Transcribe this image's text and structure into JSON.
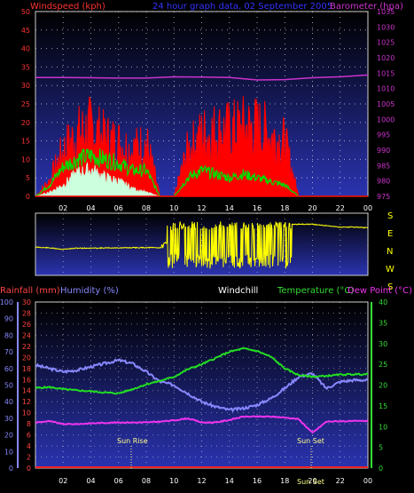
{
  "header": {
    "left_title": "Windspeed (kph)",
    "center_title": "24 hour graph data, 02 September 2005",
    "right_title": "Barometer (hpa)"
  },
  "wind_direction_labels": [
    "S",
    "E",
    "N",
    "W",
    "S"
  ],
  "bottom_header": {
    "rainfall": "Rainfall (mm)",
    "humidity": "Humidity (%)",
    "windchill": "Windchill",
    "temperature": "Temperature (°C)",
    "dewpoint": "Dew Point (°C)"
  },
  "sun_labels": {
    "sunrise": "Sun Rise",
    "sunset": "Sun Set",
    "bottom_sunset": "Sun Set"
  },
  "colors": {
    "windspeed": "#ff0000",
    "gust": "#00dd00",
    "average": "#ccffdd",
    "barometer": "#cc33cc",
    "direction": "#ffff00",
    "humidity": "#8888ff",
    "temperature": "#22dd22",
    "dewpoint": "#ee33ee",
    "rainfall": "#ff2222",
    "title_wind": "#ff3333",
    "title_center": "#3333ff",
    "title_baro": "#cc33cc",
    "axis_right_bottom": "#33dd33",
    "axis_left_rain": "#ff4444",
    "axis_left_hum": "#8888ff"
  },
  "chart_data": [
    {
      "type": "line",
      "title": "24 hour graph data, 02 September 2005",
      "x_ticks": [
        "02",
        "04",
        "06",
        "08",
        "10",
        "12",
        "14",
        "16",
        "18",
        "20",
        "22",
        "00"
      ],
      "y_left_ticks": [
        "0",
        "5",
        "10",
        "15",
        "20",
        "25",
        "30",
        "35",
        "40",
        "45",
        "50"
      ],
      "y_right_ticks": [
        "975",
        "980",
        "985",
        "990",
        "995",
        "1000",
        "1005",
        "1010",
        "1015",
        "1020",
        "1025",
        "1030",
        "1035"
      ],
      "ylim_left": [
        0,
        50
      ],
      "ylim_right": [
        975,
        1035
      ],
      "series": [
        {
          "name": "Windspeed (kph)",
          "x": [
            0,
            1,
            2,
            3,
            4,
            5,
            6,
            7,
            8,
            9,
            10,
            11,
            12,
            13,
            14,
            15,
            16,
            17,
            18,
            19,
            20,
            21,
            22,
            23,
            24
          ],
          "values": [
            0,
            4,
            12,
            16,
            18,
            15,
            14,
            12,
            14,
            0,
            0,
            12,
            16,
            17,
            17,
            18,
            18,
            16,
            14,
            0,
            0,
            0,
            0,
            0,
            0
          ]
        },
        {
          "name": "Gust",
          "x": [
            0,
            1,
            2,
            3,
            4,
            5,
            6,
            7,
            8,
            9,
            10,
            11,
            12,
            13,
            14,
            15,
            16,
            17,
            18,
            19,
            20,
            21,
            22,
            23,
            24
          ],
          "values": [
            0,
            3,
            8,
            10,
            11,
            10,
            9,
            7,
            7,
            0,
            0,
            5,
            7,
            6,
            5,
            6,
            5,
            4,
            3,
            0,
            0,
            0,
            0,
            0,
            0
          ]
        },
        {
          "name": "Average",
          "x": [
            0,
            1,
            2,
            3,
            4,
            5,
            6,
            7,
            8,
            9,
            10,
            11,
            12,
            13,
            14,
            15,
            16,
            17,
            18,
            19,
            20,
            21,
            22,
            23,
            24
          ],
          "values": [
            0,
            1,
            3,
            6,
            7,
            5,
            4,
            2,
            1,
            0,
            0,
            0,
            0,
            0,
            0,
            0,
            0,
            0,
            0,
            0,
            0,
            0,
            0,
            0,
            0
          ]
        },
        {
          "name": "Barometer (hpa)",
          "x": [
            0,
            2,
            4,
            6,
            8,
            10,
            12,
            14,
            16,
            18,
            20,
            22,
            24
          ],
          "values": [
            1013.6,
            1013.6,
            1013.5,
            1013.4,
            1013.4,
            1013.8,
            1013.7,
            1013.6,
            1012.8,
            1012.9,
            1013.5,
            1013.8,
            1014.4
          ]
        }
      ]
    },
    {
      "type": "line",
      "x_ticks": [
        "02",
        "04",
        "06",
        "08",
        "10",
        "12",
        "14",
        "16",
        "18",
        "20",
        "22",
        "00"
      ],
      "direction_labels": [
        "S",
        "E",
        "N",
        "W",
        "S"
      ],
      "series": [
        {
          "name": "Wind direction",
          "x": [
            0,
            1,
            2,
            3,
            4,
            5,
            6,
            7,
            8,
            9,
            10,
            11,
            12,
            13,
            14,
            15,
            16,
            17,
            18,
            19,
            20,
            21,
            22,
            23,
            24
          ],
          "values": [
            200,
            205,
            215,
            207,
            207,
            206,
            205,
            204,
            203,
            204,
            140,
            120,
            110,
            110,
            140,
            100,
            100,
            90,
            40,
            40,
            40,
            50,
            60,
            60,
            65
          ]
        }
      ]
    },
    {
      "type": "line",
      "x_ticks": [
        "02",
        "04",
        "06",
        "08",
        "10",
        "12",
        "14",
        "16",
        "18",
        "20",
        "22",
        "00"
      ],
      "y_left_hum_ticks": [
        "0",
        "10",
        "20",
        "30",
        "40",
        "50",
        "60",
        "70",
        "80",
        "90",
        "100"
      ],
      "y_left_rain_ticks": [
        "0",
        "2",
        "4",
        "6",
        "8",
        "10",
        "12",
        "14",
        "16",
        "18",
        "20",
        "22",
        "24",
        "26",
        "28",
        "30"
      ],
      "y_right_ticks": [
        "0",
        "5",
        "10",
        "15",
        "20",
        "25",
        "30",
        "35",
        "40"
      ],
      "ylim_temp": [
        0,
        40
      ],
      "ylim_humidity": [
        0,
        100
      ],
      "ylim_rain": [
        0,
        30
      ],
      "series": [
        {
          "name": "Humidity (%)",
          "x": [
            0,
            1,
            2,
            3,
            4,
            5,
            6,
            7,
            8,
            9,
            10,
            11,
            12,
            13,
            14,
            15,
            16,
            17,
            18,
            19,
            20,
            21,
            22,
            23,
            24
          ],
          "values": [
            62,
            60,
            58,
            59,
            61,
            63,
            65,
            63,
            58,
            52,
            50,
            45,
            40,
            37,
            35,
            36,
            38,
            42,
            48,
            55,
            57,
            48,
            52,
            53,
            53
          ]
        },
        {
          "name": "Temperature (°C)",
          "x": [
            0,
            1,
            2,
            3,
            4,
            5,
            6,
            7,
            8,
            9,
            10,
            11,
            12,
            13,
            14,
            15,
            16,
            17,
            18,
            19,
            20,
            21,
            22,
            23,
            24
          ],
          "values": [
            19.3,
            19.5,
            19.0,
            18.7,
            18.5,
            18.2,
            18.0,
            19.0,
            20.2,
            21.0,
            22.0,
            23.8,
            25.0,
            26.5,
            28.0,
            28.8,
            28.2,
            26.8,
            24.0,
            22.4,
            22.0,
            22.2,
            22.5,
            22.6,
            22.6
          ]
        },
        {
          "name": "Dew Point (°C)",
          "x": [
            0,
            1,
            2,
            3,
            4,
            5,
            6,
            7,
            8,
            9,
            10,
            11,
            12,
            13,
            14,
            15,
            16,
            17,
            18,
            19,
            20,
            21,
            22,
            23,
            24
          ],
          "values": [
            11.0,
            11.3,
            10.6,
            10.6,
            10.8,
            10.9,
            11.0,
            11.0,
            11.0,
            11.2,
            11.5,
            12.0,
            11.0,
            11.0,
            11.6,
            12.4,
            12.4,
            12.4,
            12.2,
            11.8,
            8.5,
            11.2,
            11.3,
            11.3,
            11.4
          ]
        },
        {
          "name": "Rainfall (mm)",
          "x": [
            0,
            24
          ],
          "values": [
            0,
            0
          ]
        }
      ],
      "annotations": [
        {
          "label": "Sun Rise",
          "x": 7.0
        },
        {
          "label": "Sun Set",
          "x": 19.0
        }
      ]
    }
  ]
}
